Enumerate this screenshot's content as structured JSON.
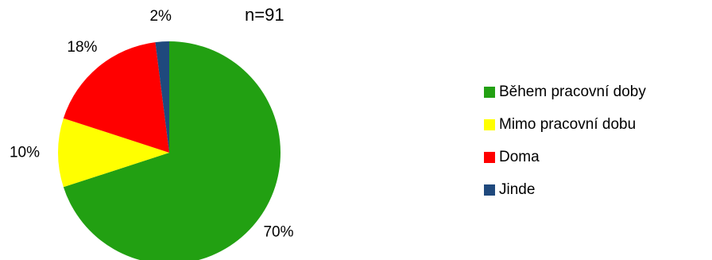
{
  "chart_data": {
    "type": "pie",
    "annotation": "n=91",
    "slices": [
      {
        "label": "Během pracovní doby",
        "value": 70,
        "color": "#22A012",
        "value_label": "70%"
      },
      {
        "label": "Mimo pracovní dobu",
        "value": 10,
        "color": "#FFFF00",
        "value_label": "10%"
      },
      {
        "label": "Doma",
        "value": 18,
        "color": "#FF0000",
        "value_label": "18%"
      },
      {
        "label": "Jinde",
        "value": 2,
        "color": "#1F497D",
        "value_label": "2%"
      }
    ],
    "legend_position": "right",
    "start_angle": "12 o'clock, clockwise"
  }
}
